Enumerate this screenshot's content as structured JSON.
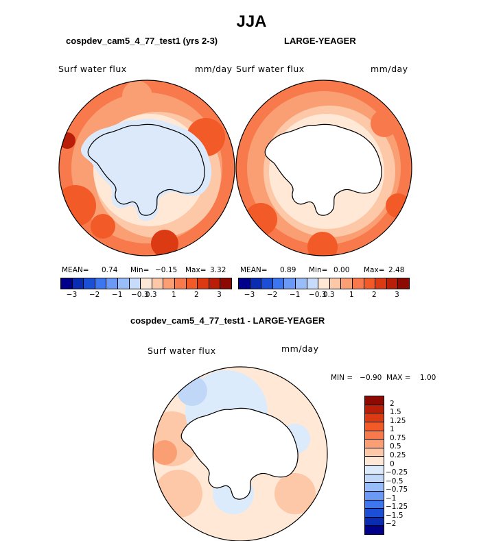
{
  "page": {
    "title": "JJA",
    "left_panel_title": "cospdev_cam5_4_77_test1 (yrs 2-3)",
    "right_panel_title": "LARGE-YEAGER",
    "diff_title": "cospdev_cam5_4_77_test1 - LARGE-YEAGER"
  },
  "panels": {
    "left": {
      "variable": "Surf water flux",
      "units": "mm/day",
      "mean_label": "MEAN=",
      "mean_value": "0.74",
      "min_label": "Min=",
      "min_value": "−0.15",
      "max_label": "Max=",
      "max_value": "3.32"
    },
    "right": {
      "variable": "Surf water flux",
      "units": "mm/day",
      "mean_label": "MEAN=",
      "mean_value": "0.89",
      "min_label": "Min=",
      "min_value": "0.00",
      "max_label": "Max=",
      "max_value": "2.48"
    },
    "diff": {
      "variable": "Surf water flux",
      "units": "mm/day",
      "minmax_text": "MIN =   −0.90  MAX =    1.00"
    }
  },
  "colorbar_top": {
    "colors": [
      "#00008b",
      "#0a2cb0",
      "#1a4fd6",
      "#3d77ef",
      "#6a9af5",
      "#98bdf8",
      "#c7dcfb",
      "#ffe8d6",
      "#fcc8a8",
      "#fa9f73",
      "#f87a4c",
      "#f25a28",
      "#dc3a12",
      "#b81e08",
      "#8c0a02"
    ],
    "tick_labels": [
      "−3",
      "−2",
      "−1",
      "−0.3",
      "0.3",
      "1",
      "2",
      "3"
    ]
  },
  "colorbar_diff": {
    "colors": [
      "#8c0a02",
      "#b81e08",
      "#dc3a12",
      "#f25a28",
      "#f87a4c",
      "#fa9f73",
      "#fcc8a8",
      "#ffe8d6",
      "#dcebfb",
      "#c1d7f7",
      "#98bdf8",
      "#6a9af5",
      "#3d77ef",
      "#1a4fd6",
      "#0a2cb0",
      "#00008b"
    ],
    "tick_labels": [
      "2",
      "1.5",
      "1.25",
      "1",
      "0.75",
      "0.5",
      "0.25",
      "0",
      "−0.25",
      "−0.5",
      "−0.75",
      "−1",
      "−1.25",
      "−1.5",
      "−2"
    ]
  }
}
